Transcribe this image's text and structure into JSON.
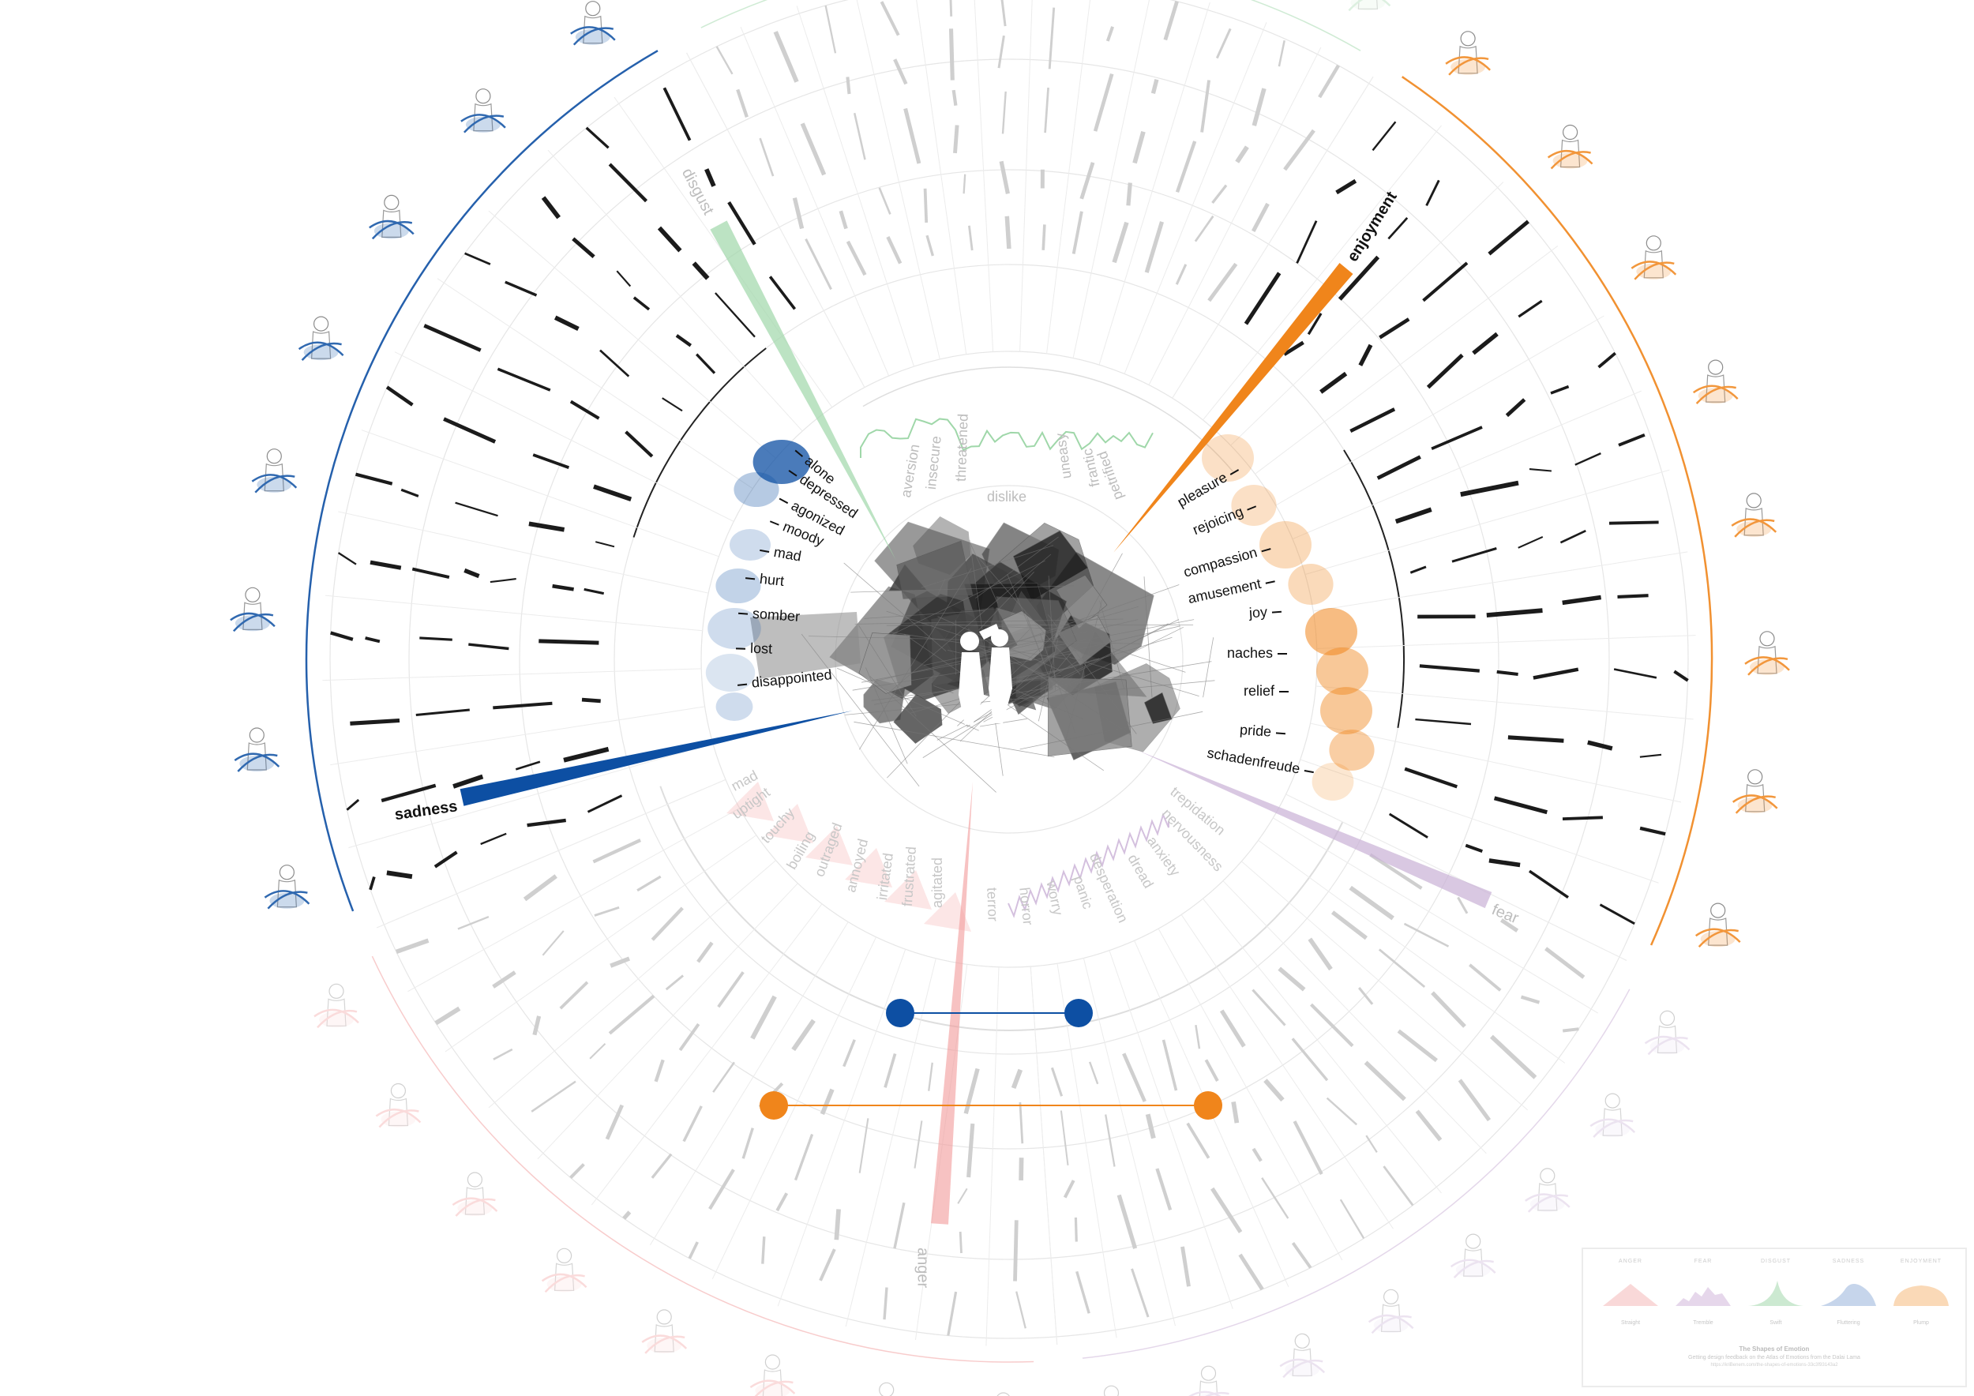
{
  "emotions": {
    "sadness": {
      "name": "sadness",
      "color": "#0d4fa3",
      "states": [
        "alone",
        "depressed",
        "agonized",
        "moody",
        "mad",
        "hurt",
        "somber",
        "lost",
        "disappointed"
      ]
    },
    "enjoyment": {
      "name": "enjoyment",
      "color": "#f0851b",
      "states": [
        "pleasure",
        "rejoicing",
        "compassion",
        "amusement",
        "joy",
        "naches",
        "relief",
        "pride",
        "schadenfreude"
      ]
    },
    "disgust": {
      "name": "disgust",
      "color": "#9fd7a9",
      "states": [
        "aversion",
        "insecure",
        "threatened",
        "dislike",
        "uneasy",
        "frantic",
        "petrified"
      ]
    },
    "anger": {
      "name": "anger",
      "color": "#f29a9a",
      "states": [
        "mad",
        "uptight",
        "touchy",
        "boiling",
        "outraged",
        "annoyed",
        "irritated",
        "frustrated",
        "agitated"
      ]
    },
    "fear": {
      "name": "fear",
      "color": "#c9b0d6",
      "states": [
        "trepidation",
        "nervousness",
        "anxiety",
        "dread",
        "desperation",
        "panic",
        "worry",
        "horror",
        "terror"
      ]
    }
  },
  "legend": {
    "headers": [
      "ANGER",
      "FEAR",
      "DISGUST",
      "SADNESS",
      "ENJOYMENT"
    ],
    "shape_labels": [
      "Straight",
      "Tremble",
      "Swift",
      "Fluttering",
      "Plump"
    ],
    "title": "The Shapes of Emotion",
    "subtitle": "Getting design feedback on the Atlas of Emotions from the Dalai Lama",
    "url": "https://kriBenem.com/the-shapes-of-emotions-33c3f93143a2"
  },
  "connectors": [
    {
      "name": "sadness-connector",
      "color": "#0d4fa3"
    },
    {
      "name": "enjoyment-connector",
      "color": "#f0851b"
    }
  ]
}
